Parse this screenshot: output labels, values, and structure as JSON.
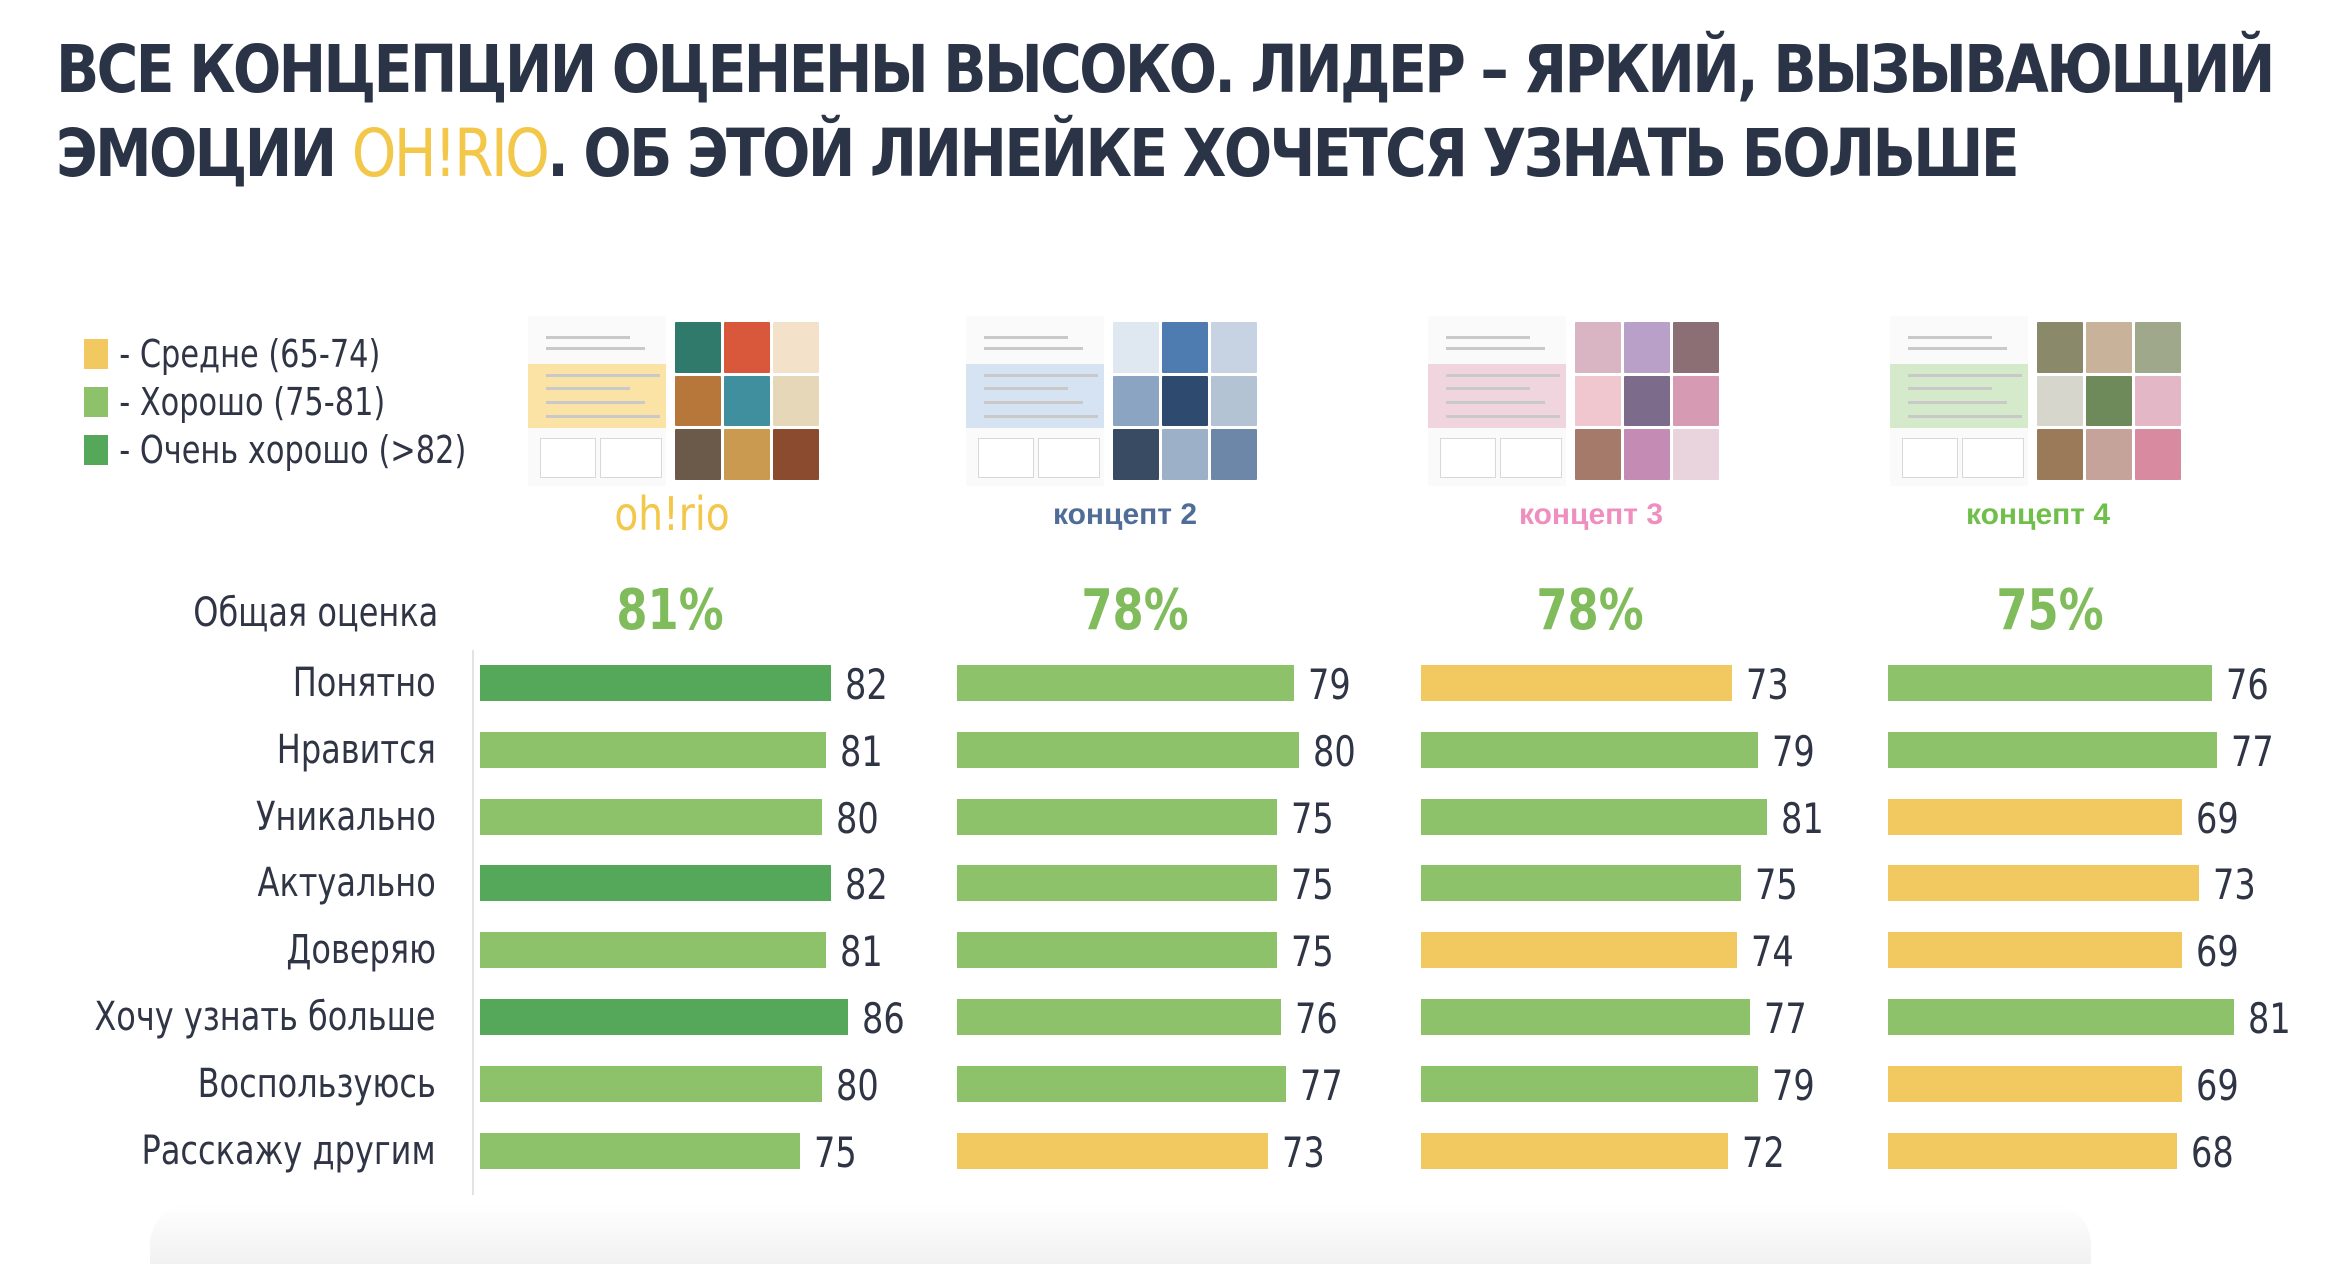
{
  "title": {
    "line1": "ВСЕ КОНЦЕПЦИИ ОЦЕНЕНЫ ВЫСОКО. ЛИДЕР – ЯРКИЙ, ВЫЗЫВАЮЩИЙ",
    "line2_prefix": "ЭМОЦИИ ",
    "line2_accent": "OH!RIO",
    "line2_suffix": ". ОБ ЭТОЙ ЛИНЕЙКЕ ХОЧЕТСЯ УЗНАТЬ БОЛЬШЕ",
    "accent_color": "#f2c74a"
  },
  "legend": [
    {
      "label": "- Средне (65-74)",
      "color": "#f2c961"
    },
    {
      "label": "- Хорошо (75-81)",
      "color": "#8dc26b"
    },
    {
      "label": "- Очень хорошо (>82)",
      "color": "#55a75a"
    }
  ],
  "overall_label": "Общая оценка",
  "concepts": [
    {
      "name": "oh!rio",
      "color": "#f2c74a",
      "overall": "81%",
      "theme": "#fbe3a6"
    },
    {
      "name": "концепт 2",
      "color": "#4f6d96",
      "overall": "78%",
      "theme": "#d6e3f2"
    },
    {
      "name": "концепт 3",
      "color": "#ee8fbf",
      "overall": "78%",
      "theme": "#f1d5de"
    },
    {
      "name": "концепт 4",
      "color": "#6fbf4a",
      "overall": "75%",
      "theme": "#d5eacb"
    }
  ],
  "colors": {
    "medium": "#f2c961",
    "good": "#8dc26b",
    "very_good": "#55a75a"
  },
  "chart_data": {
    "type": "bar",
    "orientation": "horizontal",
    "title": "ВСЕ КОНЦЕПЦИИ ОЦЕНЕНЫ ВЫСОКО. ЛИДЕР – ЯРКИЙ, ВЫЗЫВАЮЩИЙ ЭМОЦИИ OH!RIO. ОБ ЭТОЙ ЛИНЕЙКЕ ХОЧЕТСЯ УЗНАТЬ БОЛЬШЕ",
    "categories": [
      "Понятно",
      "Нравится",
      "Уникально",
      "Актуально",
      "Доверяю",
      "Хочу узнать больше",
      "Воспользуюсь",
      "Расскажу другим"
    ],
    "overall": {
      "oh!rio": 81,
      "концепт 2": 78,
      "концепт 3": 78,
      "концепт 4": 75
    },
    "series": [
      {
        "name": "oh!rio",
        "values": [
          82,
          81,
          80,
          82,
          81,
          86,
          80,
          75
        ]
      },
      {
        "name": "концепт 2",
        "values": [
          79,
          80,
          75,
          75,
          75,
          76,
          77,
          73
        ]
      },
      {
        "name": "концепт 3",
        "values": [
          73,
          79,
          81,
          75,
          74,
          77,
          79,
          72
        ]
      },
      {
        "name": "концепт 4",
        "values": [
          76,
          77,
          69,
          73,
          69,
          81,
          69,
          68
        ]
      }
    ],
    "legend": [
      {
        "label": "Средне (65-74)",
        "color": "#f2c961"
      },
      {
        "label": "Хорошо (75-81)",
        "color": "#8dc26b"
      },
      {
        "label": "Очень хорошо (>82)",
        "color": "#55a75a"
      }
    ],
    "xlabel": "",
    "ylabel": "",
    "grid": false,
    "legend_position": "top-left"
  }
}
